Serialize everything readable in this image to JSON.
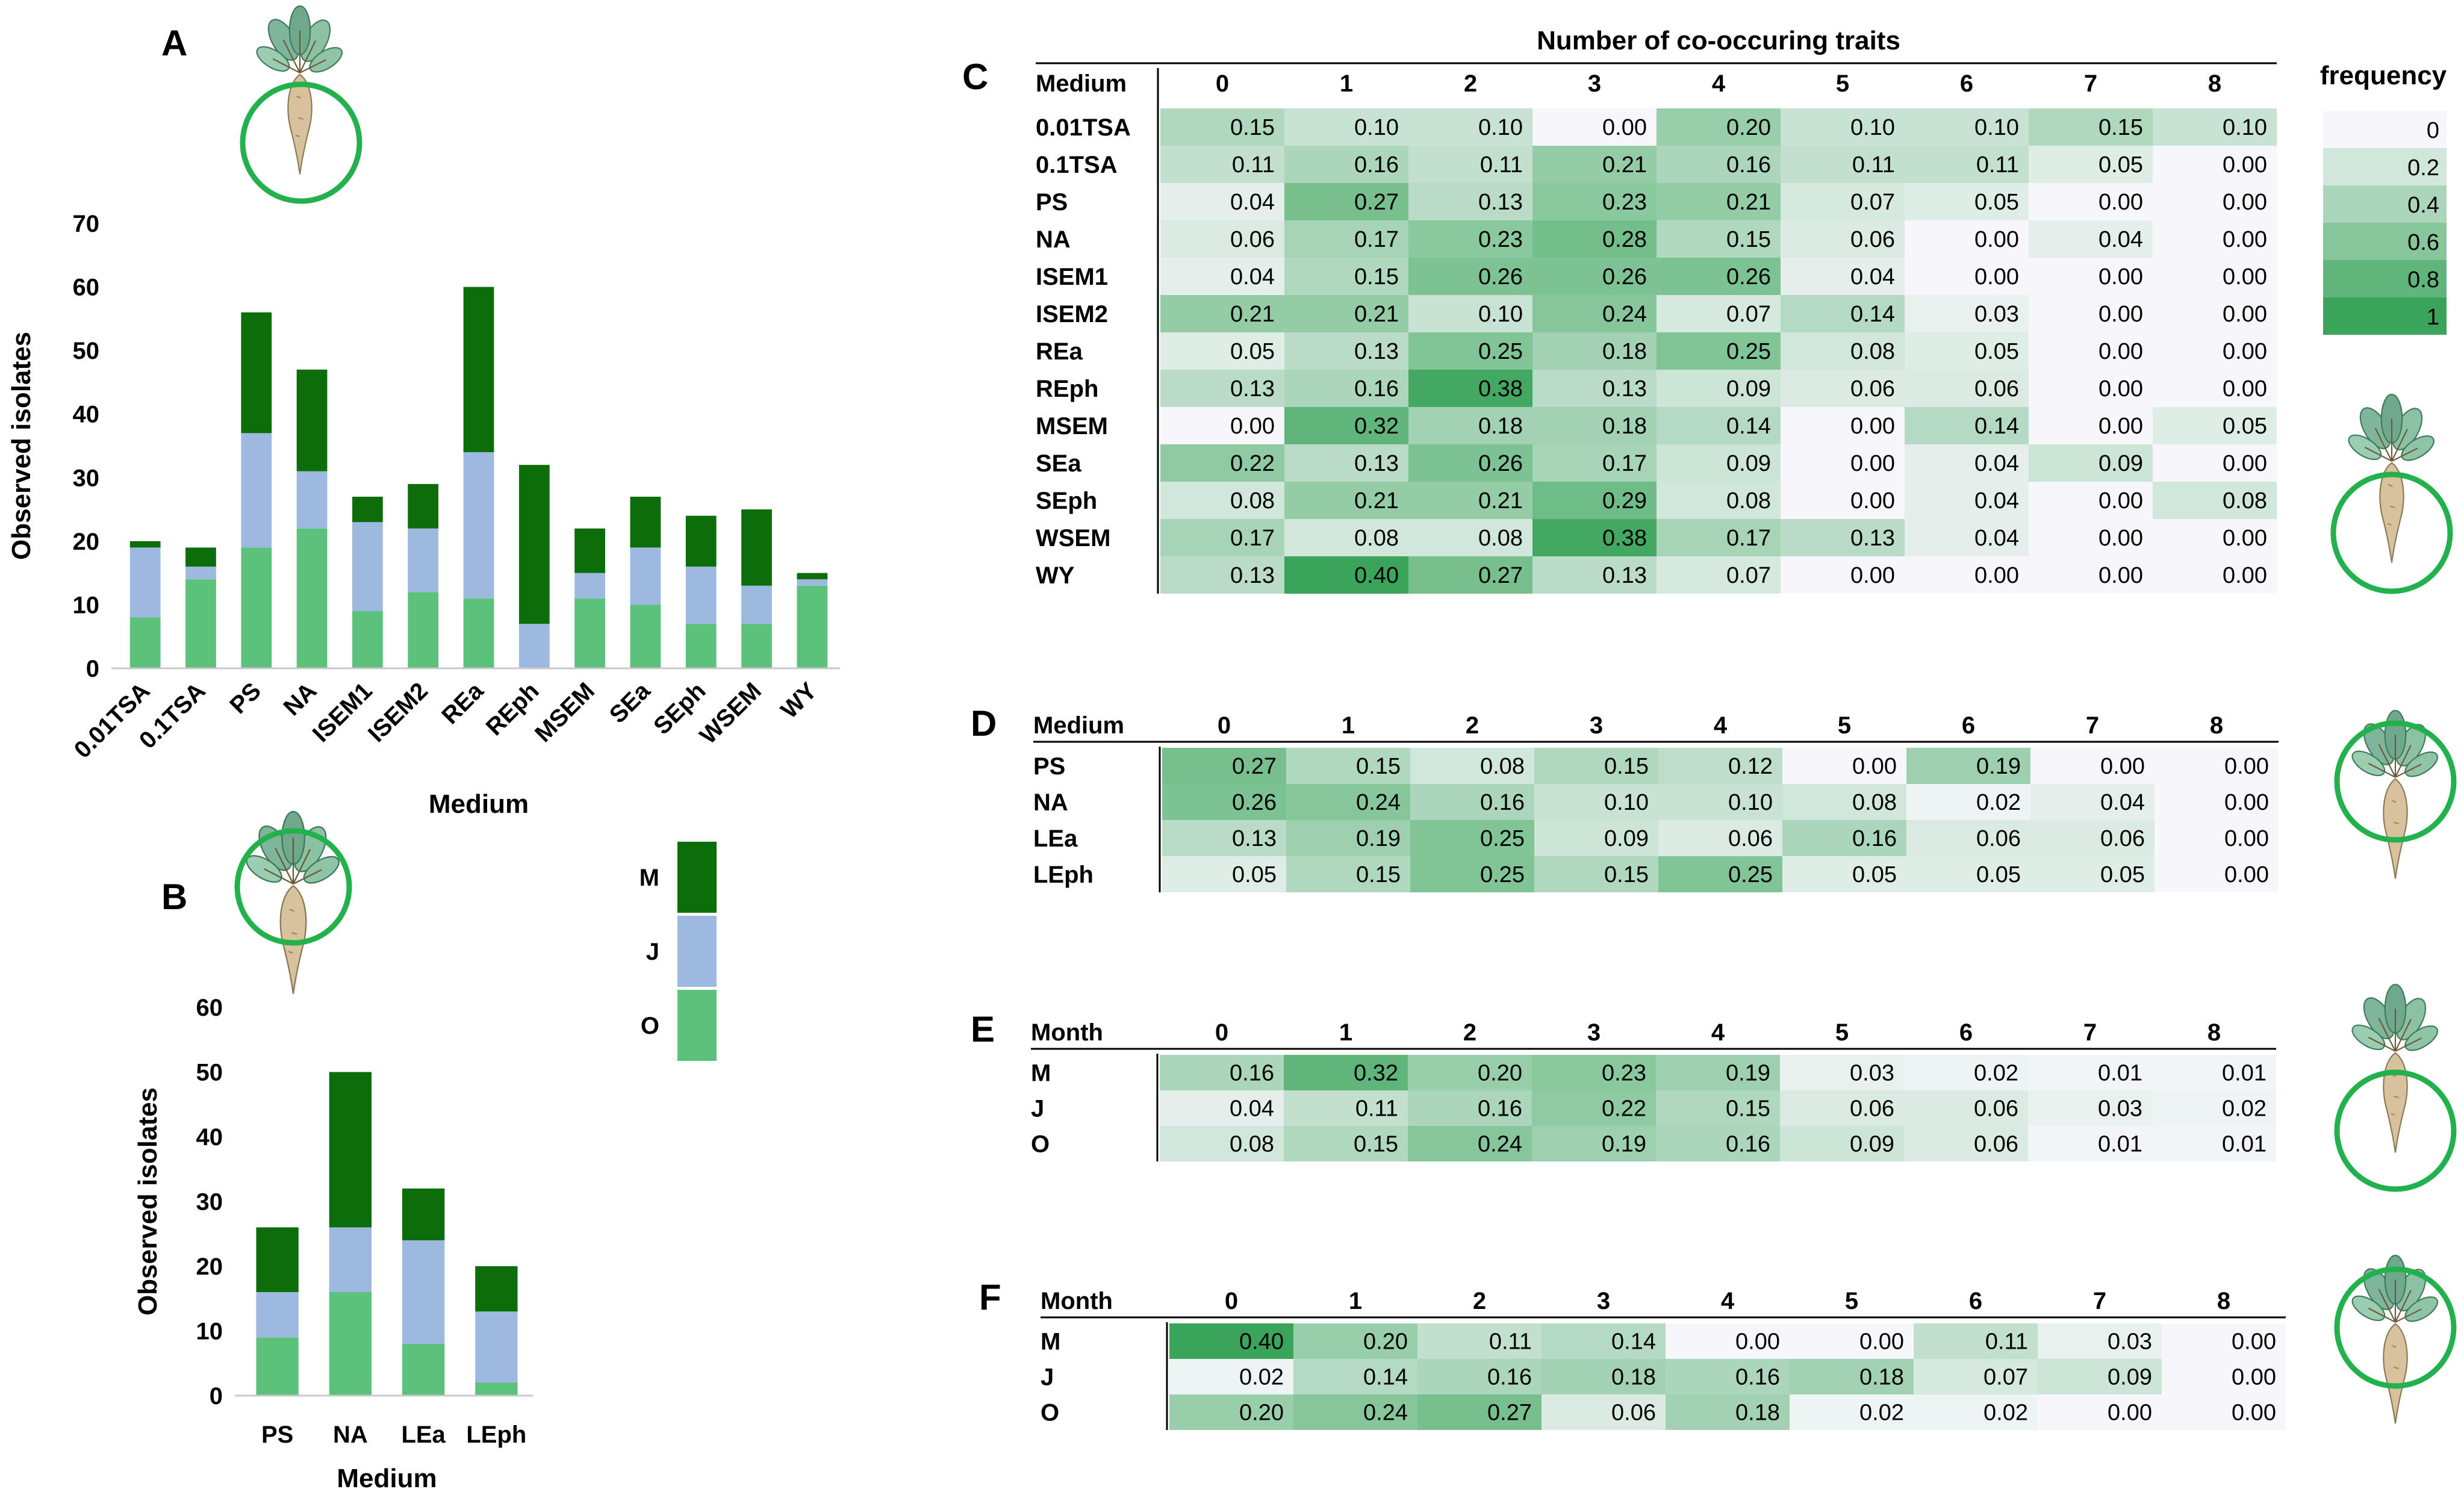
{
  "colors": {
    "M": "#0b6e0b",
    "J": "#9db9df",
    "O": "#5cc17a",
    "heat_low": "#f7f7fb",
    "heat_high": "#3aa55a",
    "circle": "#22b14c"
  },
  "panel_letters": {
    "A": "A",
    "B": "B",
    "C": "C",
    "D": "D",
    "E": "E",
    "F": "F"
  },
  "legend": {
    "title": "frequency",
    "ticks": [
      "0",
      "0.2",
      "0.4",
      "0.6",
      "0.8",
      "1"
    ],
    "ticks_values": [
      0,
      0.2,
      0.4,
      0.6,
      0.8,
      1
    ],
    "month_entries": [
      {
        "label": "M",
        "color_key": "M"
      },
      {
        "label": "J",
        "color_key": "J"
      },
      {
        "label": "O",
        "color_key": "O"
      }
    ]
  },
  "chart_data": [
    {
      "id": "A",
      "type": "bar",
      "stacked": true,
      "title": "",
      "xlabel": "Medium",
      "ylabel": "Observed isolates",
      "ylim": [
        0,
        70
      ],
      "yticks": [
        0,
        10,
        20,
        30,
        40,
        50,
        60,
        70
      ],
      "categories": [
        "0.01TSA",
        "0.1TSA",
        "PS",
        "NA",
        "ISEM1",
        "ISEM2",
        "REa",
        "REph",
        "MSEM",
        "SEa",
        "SEph",
        "WSEM",
        "WY"
      ],
      "series": [
        {
          "name": "O",
          "values": [
            8,
            14,
            19,
            22,
            9,
            12,
            11,
            0,
            11,
            10,
            7,
            7,
            13
          ]
        },
        {
          "name": "J",
          "values": [
            11,
            2,
            18,
            9,
            14,
            10,
            23,
            7,
            4,
            9,
            9,
            6,
            1
          ]
        },
        {
          "name": "M",
          "values": [
            1,
            3,
            19,
            16,
            4,
            7,
            26,
            25,
            7,
            8,
            8,
            12,
            1
          ]
        }
      ]
    },
    {
      "id": "B",
      "type": "bar",
      "stacked": true,
      "title": "",
      "xlabel": "Medium",
      "ylabel": "Observed isolates",
      "ylim": [
        0,
        60
      ],
      "yticks": [
        0,
        10,
        20,
        30,
        40,
        50,
        60
      ],
      "categories": [
        "PS",
        "NA",
        "LEa",
        "LEph"
      ],
      "series": [
        {
          "name": "O",
          "values": [
            9,
            16,
            8,
            2
          ]
        },
        {
          "name": "J",
          "values": [
            7,
            10,
            16,
            11
          ]
        },
        {
          "name": "M",
          "values": [
            10,
            24,
            8,
            7
          ]
        }
      ]
    },
    {
      "id": "C",
      "type": "heatmap",
      "title": "Number of co-occuring traits",
      "row_header": "Medium",
      "columns": [
        "0",
        "1",
        "2",
        "3",
        "4",
        "5",
        "6",
        "7",
        "8"
      ],
      "rows": [
        "0.01TSA",
        "0.1TSA",
        "PS",
        "NA",
        "ISEM1",
        "ISEM2",
        "REa",
        "REph",
        "MSEM",
        "SEa",
        "SEph",
        "WSEM",
        "WY"
      ],
      "values": [
        [
          "0.15",
          "0.10",
          "0.10",
          "0.00",
          "0.20",
          "0.10",
          "0.10",
          "0.15",
          "0.10"
        ],
        [
          "0.11",
          "0.16",
          "0.11",
          "0.21",
          "0.16",
          "0.11",
          "0.11",
          "0.05",
          "0.00"
        ],
        [
          "0.04",
          "0.27",
          "0.13",
          "0.23",
          "0.21",
          "0.07",
          "0.05",
          "0.00",
          "0.00"
        ],
        [
          "0.06",
          "0.17",
          "0.23",
          "0.28",
          "0.15",
          "0.06",
          "0.00",
          "0.04",
          "0.00"
        ],
        [
          "0.04",
          "0.15",
          "0.26",
          "0.26",
          "0.26",
          "0.04",
          "0.00",
          "0.00",
          "0.00"
        ],
        [
          "0.21",
          "0.21",
          "0.10",
          "0.24",
          "0.07",
          "0.14",
          "0.03",
          "0.00",
          "0.00"
        ],
        [
          "0.05",
          "0.13",
          "0.25",
          "0.18",
          "0.25",
          "0.08",
          "0.05",
          "0.00",
          "0.00"
        ],
        [
          "0.13",
          "0.16",
          "0.38",
          "0.13",
          "0.09",
          "0.06",
          "0.06",
          "0.00",
          "0.00"
        ],
        [
          "0.00",
          "0.32",
          "0.18",
          "0.18",
          "0.14",
          "0.00",
          "0.14",
          "0.00",
          "0.05"
        ],
        [
          "0.22",
          "0.13",
          "0.26",
          "0.17",
          "0.09",
          "0.00",
          "0.04",
          "0.09",
          "0.00"
        ],
        [
          "0.08",
          "0.21",
          "0.21",
          "0.29",
          "0.08",
          "0.00",
          "0.04",
          "0.00",
          "0.08"
        ],
        [
          "0.17",
          "0.08",
          "0.08",
          "0.38",
          "0.17",
          "0.13",
          "0.04",
          "0.00",
          "0.00"
        ],
        [
          "0.13",
          "0.40",
          "0.27",
          "0.13",
          "0.07",
          "0.00",
          "0.00",
          "0.00",
          "0.00"
        ]
      ]
    },
    {
      "id": "D",
      "type": "heatmap",
      "title": "",
      "row_header": "Medium",
      "columns": [
        "0",
        "1",
        "2",
        "3",
        "4",
        "5",
        "6",
        "7",
        "8"
      ],
      "rows": [
        "PS",
        "NA",
        "LEa",
        "LEph"
      ],
      "values": [
        [
          "0.27",
          "0.15",
          "0.08",
          "0.15",
          "0.12",
          "0.00",
          "0.19",
          "0.00",
          "0.00"
        ],
        [
          "0.26",
          "0.24",
          "0.16",
          "0.10",
          "0.10",
          "0.08",
          "0.02",
          "0.04",
          "0.00"
        ],
        [
          "0.13",
          "0.19",
          "0.25",
          "0.09",
          "0.06",
          "0.16",
          "0.06",
          "0.06",
          "0.00"
        ],
        [
          "0.05",
          "0.15",
          "0.25",
          "0.15",
          "0.25",
          "0.05",
          "0.05",
          "0.05",
          "0.00"
        ]
      ]
    },
    {
      "id": "E",
      "type": "heatmap",
      "title": "",
      "row_header": "Month",
      "columns": [
        "0",
        "1",
        "2",
        "3",
        "4",
        "5",
        "6",
        "7",
        "8"
      ],
      "rows": [
        "M",
        "J",
        "O"
      ],
      "values": [
        [
          "0.16",
          "0.32",
          "0.20",
          "0.23",
          "0.19",
          "0.03",
          "0.02",
          "0.01",
          "0.01"
        ],
        [
          "0.04",
          "0.11",
          "0.16",
          "0.22",
          "0.15",
          "0.06",
          "0.06",
          "0.03",
          "0.02"
        ],
        [
          "0.08",
          "0.15",
          "0.24",
          "0.19",
          "0.16",
          "0.09",
          "0.06",
          "0.01",
          "0.01"
        ]
      ]
    },
    {
      "id": "F",
      "type": "heatmap",
      "title": "",
      "row_header": "Month",
      "columns": [
        "0",
        "1",
        "2",
        "3",
        "4",
        "5",
        "6",
        "7",
        "8"
      ],
      "rows": [
        "M",
        "J",
        "O"
      ],
      "values": [
        [
          "0.40",
          "0.20",
          "0.11",
          "0.14",
          "0.00",
          "0.00",
          "0.11",
          "0.03",
          "0.00"
        ],
        [
          "0.02",
          "0.14",
          "0.16",
          "0.18",
          "0.16",
          "0.18",
          "0.07",
          "0.09",
          "0.00"
        ],
        [
          "0.20",
          "0.24",
          "0.27",
          "0.06",
          "0.18",
          "0.02",
          "0.02",
          "0.00",
          "0.00"
        ]
      ]
    }
  ]
}
